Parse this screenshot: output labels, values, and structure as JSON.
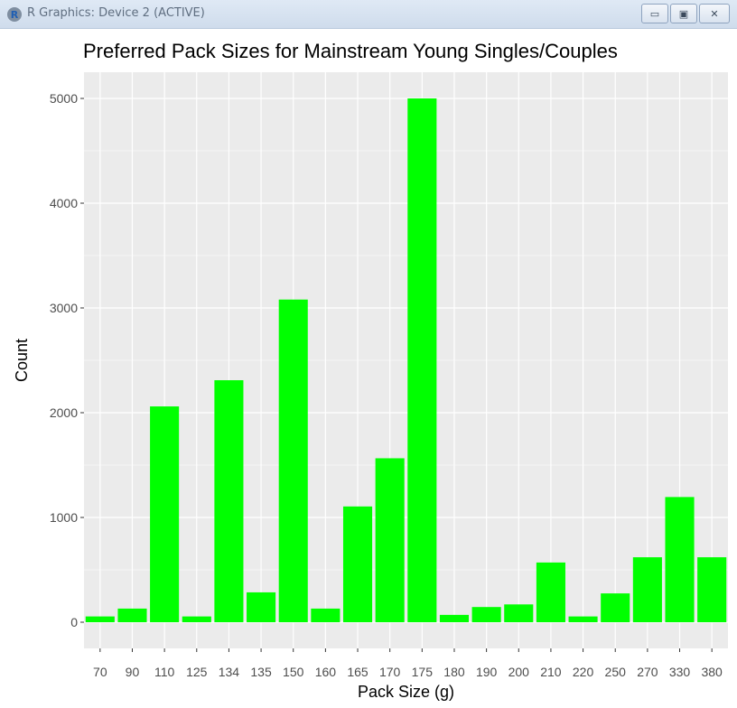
{
  "window": {
    "title": "R Graphics: Device 2 (ACTIVE)",
    "app_icon": "r-logo-icon",
    "buttons": {
      "minimize": "minimize-icon",
      "maximize": "maximize-icon",
      "close": "close-icon"
    }
  },
  "chart_data": {
    "type": "bar",
    "title": "Preferred Pack Sizes for Mainstream Young Singles/Couples",
    "xlabel": "Pack Size (g)",
    "ylabel": "Count",
    "categories": [
      "70",
      "90",
      "110",
      "125",
      "134",
      "135",
      "150",
      "160",
      "165",
      "170",
      "175",
      "180",
      "190",
      "200",
      "210",
      "220",
      "250",
      "270",
      "330",
      "380"
    ],
    "values": [
      55,
      130,
      2060,
      55,
      2310,
      285,
      3080,
      130,
      1105,
      1565,
      5000,
      70,
      145,
      170,
      570,
      55,
      275,
      620,
      1195,
      620
    ],
    "ylim": [
      -250,
      5250
    ],
    "yticks": [
      0,
      1000,
      2000,
      3000,
      4000,
      5000
    ],
    "grid": true,
    "colors": {
      "bar": "#00ff00",
      "panel": "#ebebeb",
      "grid": "#ffffff"
    }
  }
}
